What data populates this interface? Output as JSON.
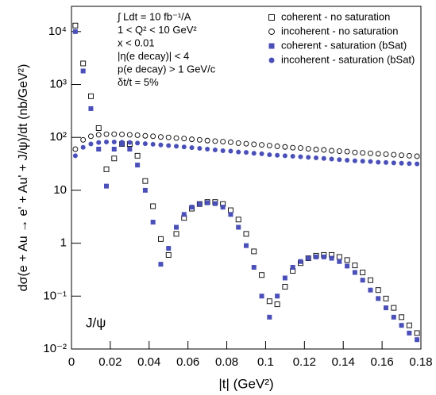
{
  "chart_data": {
    "type": "scatter",
    "xlabel": "|t| (GeV²)",
    "ylabel": "dσ(e + Au → e' + Au' + J/ψ)/dt (nb/GeV²)",
    "annotations": [
      "∫ Ldt = 10 fb⁻¹/A",
      "1 < Q² < 10 GeV²",
      "x < 0.01",
      "|η(e decay)| < 4",
      "p(e decay) > 1 GeV/c",
      "δt/t = 5%"
    ],
    "label": "J/ψ",
    "log_y": true,
    "legend": "top-right",
    "xlim": [
      0,
      0.18
    ],
    "xticks": [
      0,
      0.02,
      0.04,
      0.06,
      0.08,
      0.1,
      0.12,
      0.14,
      0.16,
      0.18
    ],
    "ylim": [
      0.01,
      30000
    ],
    "yticks": [
      {
        "value": 0.01,
        "label": "10⁻²"
      },
      {
        "value": 0.1,
        "label": "10⁻¹"
      },
      1,
      10,
      {
        "value": 100,
        "label": "10²"
      },
      {
        "value": 1000,
        "label": "10³"
      },
      {
        "value": 10000,
        "label": "10⁴"
      }
    ],
    "x": [
      0.002,
      0.006,
      0.01,
      0.014,
      0.018,
      0.022,
      0.026,
      0.03,
      0.034,
      0.038,
      0.042,
      0.046,
      0.05,
      0.054,
      0.058,
      0.062,
      0.066,
      0.07,
      0.074,
      0.078,
      0.082,
      0.086,
      0.09,
      0.094,
      0.098,
      0.102,
      0.106,
      0.11,
      0.114,
      0.118,
      0.122,
      0.126,
      0.13,
      0.134,
      0.138,
      0.142,
      0.146,
      0.15,
      0.154,
      0.158,
      0.162,
      0.166,
      0.17,
      0.174,
      0.178
    ],
    "series": [
      {
        "name": "coherent - no saturation",
        "color": "#000000",
        "marker": "open-square",
        "values": [
          13000,
          2500,
          600,
          150,
          25,
          40,
          75,
          75,
          45,
          15,
          5,
          1.2,
          0.6,
          1.5,
          3,
          4.5,
          5.5,
          6,
          6,
          5.5,
          4.2,
          2.8,
          1.5,
          0.7,
          0.25,
          0.08,
          0.07,
          0.15,
          0.3,
          0.42,
          0.52,
          0.58,
          0.6,
          0.6,
          0.55,
          0.48,
          0.38,
          0.28,
          0.2,
          0.13,
          0.09,
          0.06,
          0.04,
          0.028,
          0.02
        ]
      },
      {
        "name": "incoherent - no saturation",
        "color": "#000000",
        "marker": "open-circle",
        "values": [
          60,
          90,
          105,
          112,
          115,
          115,
          114,
          112,
          110,
          107,
          105,
          102,
          100,
          97,
          95,
          92,
          90,
          87,
          85,
          83,
          81,
          78,
          76,
          74,
          72,
          70,
          68,
          66,
          64,
          63,
          61,
          59,
          58,
          56,
          55,
          54,
          52,
          51,
          50,
          49,
          48,
          47,
          46,
          45,
          44
        ]
      },
      {
        "name": "coherent - saturation (bSat)",
        "color": "#4a50b8",
        "marker": "filled-square",
        "values": [
          10000,
          1800,
          350,
          60,
          12,
          60,
          75,
          60,
          30,
          10,
          2.5,
          0.4,
          0.8,
          2,
          3.5,
          4.8,
          5.5,
          5.8,
          5.6,
          4.8,
          3.5,
          2,
          0.9,
          0.35,
          0.1,
          0.04,
          0.1,
          0.22,
          0.35,
          0.45,
          0.52,
          0.55,
          0.55,
          0.52,
          0.45,
          0.37,
          0.28,
          0.2,
          0.13,
          0.09,
          0.06,
          0.04,
          0.028,
          0.02,
          0.015
        ]
      },
      {
        "name": "incoherent - saturation (bSat)",
        "color": "#4a50b8",
        "marker": "filled-circle",
        "values": [
          45,
          65,
          75,
          80,
          82,
          82,
          81,
          80,
          78,
          76,
          74,
          72,
          70,
          68,
          66,
          64,
          62,
          60,
          58,
          56,
          55,
          53,
          52,
          50,
          49,
          47,
          46,
          45,
          44,
          43,
          42,
          41,
          40,
          39,
          38,
          37,
          36,
          35.5,
          35,
          34,
          33.5,
          33,
          32.5,
          32,
          31.5
        ]
      }
    ]
  }
}
